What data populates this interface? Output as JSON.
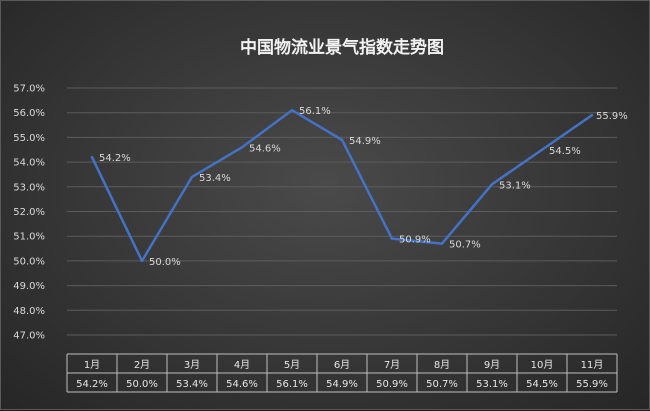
{
  "chart_data": {
    "type": "line",
    "title": "中国物流业景气指数走势图",
    "categories": [
      "1月",
      "2月",
      "3月",
      "4月",
      "5月",
      "6月",
      "7月",
      "8月",
      "9月",
      "10月",
      "11月"
    ],
    "series": [
      {
        "values": [
          54.2,
          50.0,
          53.4,
          54.6,
          56.1,
          54.9,
          50.9,
          50.7,
          53.1,
          54.5,
          55.9
        ],
        "labels": [
          "54.2%",
          "50.0%",
          "53.4%",
          "54.6%",
          "56.1%",
          "54.9%",
          "50.9%",
          "50.7%",
          "53.1%",
          "54.5%",
          "55.9%"
        ],
        "color": "#4472c4"
      }
    ],
    "ylim": [
      47.0,
      57.0
    ],
    "yticks": [
      "47.0%",
      "48.0%",
      "49.0%",
      "50.0%",
      "51.0%",
      "52.0%",
      "53.0%",
      "54.0%",
      "55.0%",
      "56.0%",
      "57.0%"
    ],
    "grid": true,
    "data_table": true
  }
}
